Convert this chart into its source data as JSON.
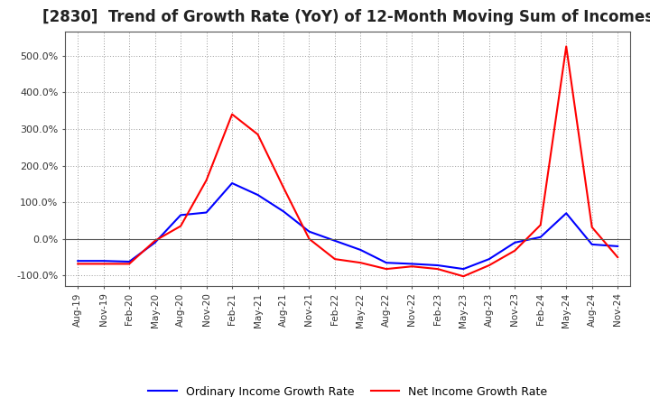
{
  "title": "[2830]  Trend of Growth Rate (YoY) of 12-Month Moving Sum of Incomes",
  "title_fontsize": 12,
  "background_color": "#ffffff",
  "plot_bg_color": "#ffffff",
  "grid_color": "#999999",
  "line1_color": "#0000ff",
  "line2_color": "#ff0000",
  "line1_label": "Ordinary Income Growth Rate",
  "line2_label": "Net Income Growth Rate",
  "x_labels": [
    "Aug-19",
    "Nov-19",
    "Feb-20",
    "May-20",
    "Aug-20",
    "Nov-20",
    "Feb-21",
    "May-21",
    "Aug-21",
    "Nov-21",
    "Feb-22",
    "May-22",
    "Aug-22",
    "Nov-22",
    "Feb-23",
    "May-23",
    "Aug-23",
    "Nov-23",
    "Feb-24",
    "May-24",
    "Aug-24",
    "Nov-24"
  ],
  "ordinary_income": [
    -0.6,
    -0.6,
    -0.62,
    -0.1,
    0.65,
    0.72,
    1.52,
    1.2,
    0.75,
    0.2,
    -0.05,
    -0.3,
    -0.65,
    -0.68,
    -0.72,
    -0.82,
    -0.55,
    -0.1,
    0.05,
    0.7,
    -0.15,
    -0.2
  ],
  "net_income": [
    -0.68,
    -0.68,
    -0.68,
    -0.05,
    0.35,
    1.6,
    3.4,
    2.85,
    1.4,
    0.0,
    -0.55,
    -0.65,
    -0.82,
    -0.75,
    -0.82,
    -1.02,
    -0.72,
    -0.32,
    0.38,
    5.25,
    0.32,
    -0.5
  ],
  "yticks": [
    -1.0,
    0.0,
    1.0,
    2.0,
    3.0,
    4.0,
    5.0
  ],
  "ytick_labels": [
    "-100.0%",
    "0.0%",
    "100.0%",
    "200.0%",
    "300.0%",
    "400.0%",
    "500.0%"
  ],
  "ylim_min": -1.28,
  "ylim_max": 5.65,
  "linewidth": 1.5
}
